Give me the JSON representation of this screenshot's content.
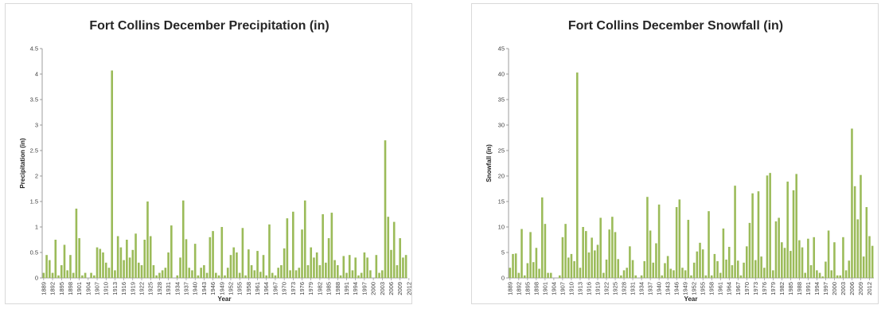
{
  "chart_data": [
    {
      "type": "bar",
      "title": "Fort Collins December Precipitation (in)",
      "xlabel": "Year",
      "ylabel": "Precipitation (in)",
      "ylim": [
        0,
        4.5
      ],
      "yticks": [
        "0",
        "0.5",
        "1",
        "1.5",
        "2",
        "2.5",
        "3",
        "3.5",
        "4",
        "4.5"
      ],
      "year_start": 1889,
      "x_tick_labels": [
        "1889",
        "1892",
        "1895",
        "1898",
        "1901",
        "1904",
        "1907",
        "1910",
        "1913",
        "1916",
        "1919",
        "1922",
        "1925",
        "1928",
        "1931",
        "1934",
        "1937",
        "1940",
        "1943",
        "1946",
        "1949",
        "1952",
        "1955",
        "1958",
        "1961",
        "1964",
        "1967",
        "1970",
        "1973",
        "1976",
        "1979",
        "1982",
        "1985",
        "1988",
        "1991",
        "1994",
        "1997",
        "2000",
        "2003",
        "2006",
        "2009",
        "2012"
      ],
      "grid": false,
      "bar_color": "#9bbb59",
      "values": [
        0.1,
        0.45,
        0.35,
        0.1,
        0.75,
        0.05,
        0.25,
        0.65,
        0.15,
        0.45,
        0.1,
        1.36,
        0.78,
        0.05,
        0.1,
        0.0,
        0.1,
        0.05,
        0.6,
        0.57,
        0.5,
        0.3,
        0.2,
        4.07,
        0.15,
        0.82,
        0.6,
        0.35,
        0.75,
        0.4,
        0.55,
        0.87,
        0.3,
        0.25,
        0.75,
        1.5,
        0.82,
        0.25,
        0.05,
        0.1,
        0.15,
        0.2,
        0.5,
        1.03,
        0.0,
        0.05,
        0.4,
        1.52,
        0.76,
        0.2,
        0.15,
        0.67,
        0.05,
        0.2,
        0.25,
        0.1,
        0.8,
        0.92,
        0.1,
        0.05,
        1.0,
        0.05,
        0.2,
        0.45,
        0.6,
        0.5,
        0.1,
        0.98,
        0.05,
        0.56,
        0.25,
        0.15,
        0.53,
        0.12,
        0.45,
        0.05,
        1.05,
        0.1,
        0.05,
        0.2,
        0.25,
        0.58,
        1.17,
        0.15,
        1.3,
        0.15,
        0.2,
        0.95,
        1.52,
        0.25,
        0.6,
        0.4,
        0.5,
        0.25,
        1.25,
        0.3,
        0.78,
        1.28,
        0.35,
        0.25,
        0.05,
        0.43,
        0.1,
        0.45,
        0.15,
        0.4,
        0.05,
        0.1,
        0.5,
        0.4,
        0.15,
        0.0,
        0.45,
        0.1,
        0.15,
        2.7,
        1.2,
        0.55,
        1.1,
        0.25,
        0.78,
        0.4,
        0.45
      ]
    },
    {
      "type": "bar",
      "title": "Fort Collins December Snowfall (in)",
      "xlabel": "Year",
      "ylabel": "Snowfall (in)",
      "ylim": [
        0,
        45
      ],
      "yticks": [
        "0",
        "5",
        "10",
        "15",
        "20",
        "25",
        "30",
        "35",
        "40",
        "45"
      ],
      "year_start": 1889,
      "x_tick_labels": [
        "1889",
        "1892",
        "1895",
        "1898",
        "1901",
        "1904",
        "1907",
        "1910",
        "1913",
        "1916",
        "1919",
        "1922",
        "1925",
        "1928",
        "1931",
        "1934",
        "1937",
        "1940",
        "1943",
        "1946",
        "1949",
        "1952",
        "1955",
        "1958",
        "1961",
        "1964",
        "1967",
        "1970",
        "1973",
        "1976",
        "1979",
        "1982",
        "1985",
        "1988",
        "1991",
        "1994",
        "1997",
        "2000",
        "2003",
        "2006",
        "2009",
        "2012"
      ],
      "grid": false,
      "bar_color": "#9bbb59",
      "values": [
        2.0,
        4.7,
        4.8,
        1.0,
        9.6,
        0.5,
        2.9,
        9.0,
        3.1,
        5.9,
        1.8,
        15.8,
        10.6,
        1.0,
        1.0,
        0.0,
        0.0,
        0.5,
        8.0,
        10.6,
        4.0,
        4.7,
        3.3,
        40.3,
        2.0,
        10.0,
        9.2,
        5.0,
        7.9,
        5.4,
        6.5,
        11.8,
        1.0,
        3.6,
        9.5,
        12.0,
        9.0,
        3.7,
        0.5,
        1.5,
        2.0,
        6.2,
        3.5,
        0.5,
        0.0,
        0.5,
        3.3,
        15.9,
        9.3,
        3.0,
        6.8,
        14.4,
        0.5,
        2.9,
        4.3,
        1.8,
        1.5,
        13.9,
        15.4,
        2.0,
        1.5,
        11.4,
        0.5,
        3.0,
        5.2,
        6.9,
        5.6,
        0.5,
        13.1,
        0.5,
        4.7,
        3.3,
        1.0,
        9.7,
        3.6,
        6.1,
        2.5,
        18.1,
        3.4,
        0.5,
        3.0,
        6.2,
        10.8,
        16.6,
        3.5,
        17.0,
        4.2,
        2.0,
        20.1,
        20.6,
        1.5,
        11.1,
        11.8,
        7.0,
        5.9,
        18.9,
        5.3,
        17.2,
        20.4,
        7.4,
        6.0,
        1.0,
        7.7,
        2.5,
        8.0,
        1.5,
        1.0,
        0.3,
        3.2,
        9.3,
        1.5,
        7.0,
        0.5,
        0.5,
        8.0,
        1.5,
        3.4,
        29.3,
        18.0,
        11.5,
        20.2,
        4.2,
        13.9,
        8.2,
        6.3
      ]
    }
  ]
}
